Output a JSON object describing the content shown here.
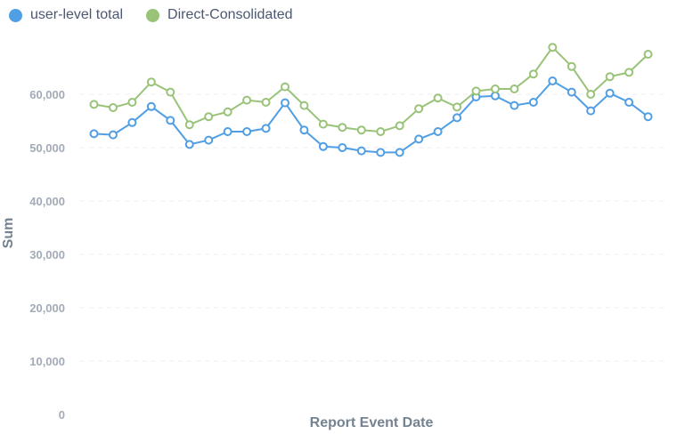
{
  "chart_data": {
    "type": "line",
    "title": "",
    "xlabel": "Report Event Date",
    "ylabel": "Sum",
    "ylim": [
      0,
      70000
    ],
    "yticks": [
      0,
      10000,
      20000,
      30000,
      40000,
      50000,
      60000
    ],
    "ytick_labels": [
      "0",
      "10,000",
      "20,000",
      "30,000",
      "40,000",
      "50,000",
      "60,000"
    ],
    "grid": true,
    "legend_position": "top-left",
    "x": [
      1,
      2,
      3,
      4,
      5,
      6,
      7,
      8,
      9,
      10,
      11,
      12,
      13,
      14,
      15,
      16,
      17,
      18,
      19,
      20,
      21,
      22,
      23,
      24,
      25,
      26,
      27,
      28,
      29,
      30,
      31
    ],
    "series": [
      {
        "name": "user-level total",
        "color": "#509ee3",
        "values": [
          52600,
          52400,
          54700,
          57700,
          55100,
          50600,
          51400,
          53000,
          53000,
          53600,
          58400,
          53300,
          50200,
          50000,
          49400,
          49100,
          49100,
          51600,
          53000,
          55600,
          59500,
          59700,
          57900,
          58500,
          62500,
          60400,
          56900,
          60200,
          58500,
          55800,
          null
        ]
      },
      {
        "name": "Direct-Consolidated",
        "color": "#98c379",
        "values": [
          58100,
          57500,
          58500,
          62300,
          60400,
          54300,
          55800,
          56700,
          58900,
          58500,
          61400,
          57900,
          54400,
          53800,
          53300,
          53000,
          54100,
          57300,
          59300,
          57600,
          60600,
          61000,
          61000,
          63800,
          68800,
          65200,
          60000,
          63300,
          64100,
          67500,
          null
        ]
      }
    ]
  }
}
